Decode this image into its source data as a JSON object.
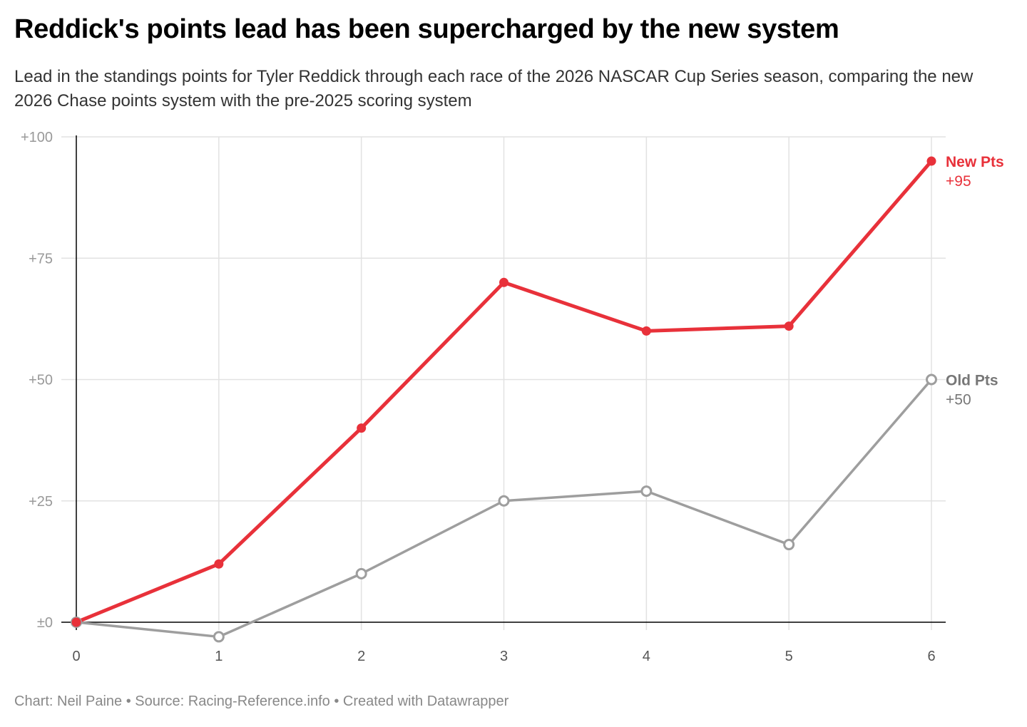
{
  "title": "Reddick's points lead has been supercharged by the new system",
  "subtitle": "Lead in the standings points for Tyler Reddick through each race of the 2026 NASCAR Cup Series season, comparing the new 2026 Chase points system with the pre-2025 scoring system",
  "footer": "Chart: Neil Paine • Source: Racing-Reference.info • Created with Datawrapper",
  "chart_data": {
    "type": "line",
    "title": "Reddick's points lead has been supercharged by the new system",
    "xlabel": "",
    "ylabel": "",
    "x": [
      0,
      1,
      2,
      3,
      4,
      5,
      6
    ],
    "xlim": [
      0,
      6
    ],
    "ylim": [
      -3,
      100
    ],
    "yticks": [
      0,
      25,
      50,
      75,
      100
    ],
    "ytick_labels": [
      "±0",
      "+25",
      "+50",
      "+75",
      "+100"
    ],
    "xtick_labels": [
      "0",
      "1",
      "2",
      "3",
      "4",
      "5",
      "6"
    ],
    "grid": true,
    "legend": "end-of-line labels",
    "series": [
      {
        "name": "New Pts",
        "end_label": "+95",
        "color": "#e8313a",
        "marker": "filled",
        "values": [
          0,
          12,
          40,
          70,
          60,
          61,
          95
        ]
      },
      {
        "name": "Old Pts",
        "end_label": "+50",
        "color": "#9e9e9e",
        "marker": "hollow",
        "values": [
          0,
          -3,
          10,
          25,
          27,
          16,
          50
        ]
      }
    ]
  }
}
